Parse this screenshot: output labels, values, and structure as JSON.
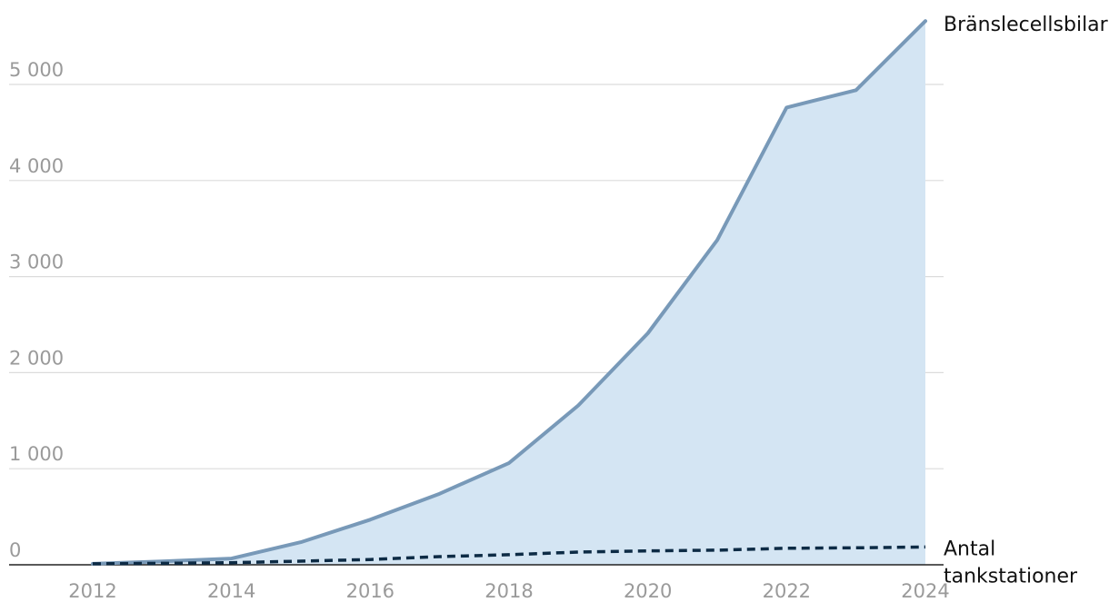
{
  "chart_data": {
    "type": "area",
    "x": [
      2012,
      2013,
      2014,
      2015,
      2016,
      2017,
      2018,
      2019,
      2020,
      2021,
      2022,
      2023,
      2024
    ],
    "series": [
      {
        "name": "Bränslecellsbilar",
        "style": "area-line",
        "color": "#7899b8",
        "fill": "#d4e5f3",
        "values": [
          10,
          35,
          65,
          235,
          470,
          740,
          1060,
          1660,
          2410,
          3380,
          4760,
          4940,
          5660
        ]
      },
      {
        "name": "Antal tankstationer",
        "label_lines": [
          "Antal",
          "tankstationer"
        ],
        "style": "dashed-line",
        "color": "#0d2b45",
        "values": [
          10,
          15,
          22,
          38,
          55,
          85,
          105,
          132,
          145,
          152,
          172,
          177,
          185
        ]
      }
    ],
    "xticks": [
      "2012",
      "2014",
      "2016",
      "2018",
      "2020",
      "2022",
      "2024"
    ],
    "yticks": [
      "0",
      "1 000",
      "2 000",
      "3 000",
      "4 000",
      "5 000"
    ],
    "ylim": [
      0,
      5800
    ],
    "xlim": [
      2012,
      2024
    ],
    "grid": "horizontal"
  }
}
